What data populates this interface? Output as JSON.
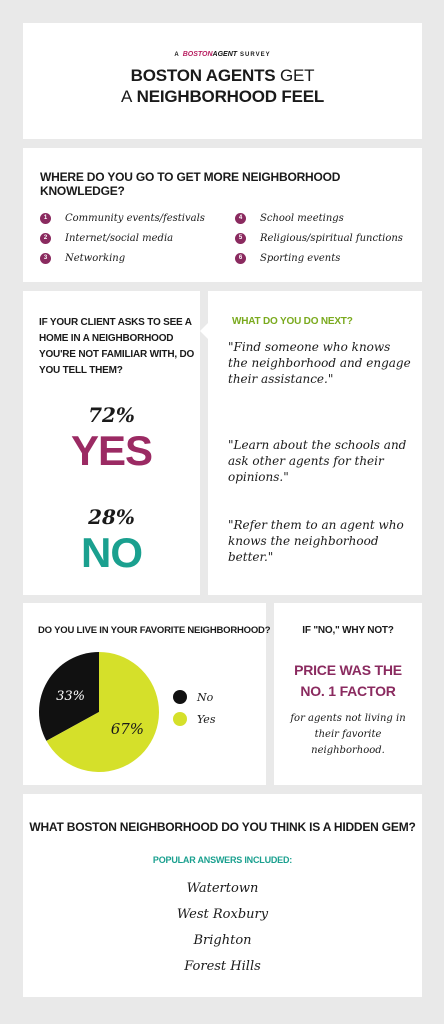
{
  "header": {
    "brand_prefix": "A",
    "brand_boston": "BOSTON",
    "brand_agent": "AGENT",
    "brand_suffix": "SURVEY",
    "title_line1_bold": "BOSTON AGENTS",
    "title_line1_light": "GET",
    "title_line2_light": "A",
    "title_line2_bold": "NEIGHBORHOOD FEEL"
  },
  "knowledge": {
    "question": "WHERE DO YOU GO TO GET MORE NEIGHBORHOOD KNOWLEDGE?",
    "items": [
      {
        "num": "1",
        "label": "Community events/festivals"
      },
      {
        "num": "2",
        "label": "Internet/social media"
      },
      {
        "num": "3",
        "label": "Networking"
      },
      {
        "num": "4",
        "label": "School meetings"
      },
      {
        "num": "5",
        "label": "Religious/spiritual functions"
      },
      {
        "num": "6",
        "label": "Sporting events"
      }
    ],
    "badge_color": "#8a2a5f"
  },
  "client": {
    "question": "IF YOUR CLIENT ASKS TO SEE A HOME IN A NEIGHBORHOOD YOU'RE NOT FAMILIAR WITH, DO YOU TELL THEM?",
    "yes_pct": "72%",
    "yes_label": "YES",
    "yes_color": "#9b2a63",
    "no_pct": "28%",
    "no_label": "NO",
    "no_color": "#1aa08f"
  },
  "next": {
    "heading": "WHAT DO YOU DO NEXT?",
    "quotes": [
      "\"Find someone who knows the neighborhood and engage their assistance.\"",
      "\"Learn about the schools and ask other agents for their opinions.\"",
      "\"Refer them to an agent who knows the neighborhood better.\""
    ]
  },
  "live": {
    "question": "DO YOU LIVE IN YOUR FAVORITE NEIGHBORHOOD?"
  },
  "chart_data": {
    "type": "pie",
    "categories": [
      "No",
      "Yes"
    ],
    "values": [
      33,
      67
    ],
    "labels": [
      "33%",
      "67%"
    ],
    "colors": [
      "#111111",
      "#d5e02a"
    ],
    "legend_position": "right"
  },
  "why_not": {
    "heading": "IF \"NO,\" WHY NOT?",
    "big_line1": "PRICE WAS THE",
    "big_line2": "NO. 1 FACTOR",
    "small": "for agents not living in their favorite neighborhood."
  },
  "gem": {
    "question": "WHAT BOSTON NEIGHBORHOOD DO YOU THINK IS A HIDDEN GEM?",
    "subheading": "POPULAR ANSWERS INCLUDED:",
    "answers": [
      "Watertown",
      "West Roxbury",
      "Brighton",
      "Forest Hills"
    ]
  }
}
